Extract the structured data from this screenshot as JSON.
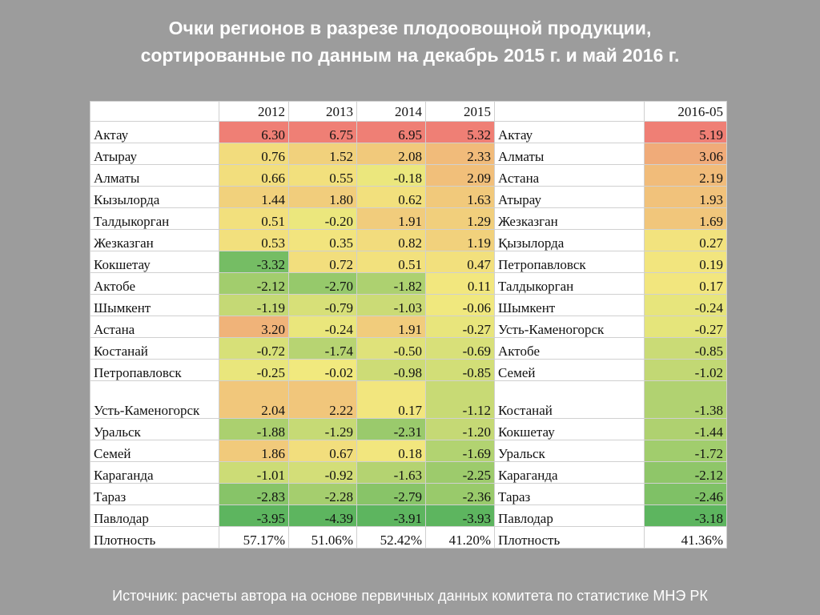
{
  "title": {
    "line1": "Очки регионов в разрезе плодоовощной продукции,",
    "line2": "сортированные по данным на декабрь 2015 г. и май 2016 г."
  },
  "source": "Источник: расчеты автора на основе первичных данных комитета по статистике МНЭ РК",
  "table": {
    "headers": [
      "",
      "2012",
      "2013",
      "2014",
      "2015",
      "",
      "2016-05"
    ],
    "rows": [
      {
        "region": "Актау",
        "v": [
          "6.30",
          "6.75",
          "6.95",
          "5.32"
        ],
        "region2": "Актау",
        "v2": "5.19"
      },
      {
        "region": "Атырау",
        "v": [
          "0.76",
          "1.52",
          "2.08",
          "2.33"
        ],
        "region2": "Алматы",
        "v2": "3.06"
      },
      {
        "region": "Алматы",
        "v": [
          "0.66",
          "0.55",
          "-0.18",
          "2.09"
        ],
        "region2": "Астана",
        "v2": "2.19"
      },
      {
        "region": "Кызылорда",
        "v": [
          "1.44",
          "1.80",
          "0.62",
          "1.63"
        ],
        "region2": "Атырау",
        "v2": "1.93"
      },
      {
        "region": "Талдыкорган",
        "v": [
          "0.51",
          "-0.20",
          "1.91",
          "1.29"
        ],
        "region2": "Жезказган",
        "v2": "1.69"
      },
      {
        "region": "Жезказган",
        "v": [
          "0.53",
          "0.35",
          "0.82",
          "1.19"
        ],
        "region2": "Қызылорда",
        "v2": "0.27"
      },
      {
        "region": "Кокшетау",
        "v": [
          "-3.32",
          "0.72",
          "0.51",
          "0.47"
        ],
        "region2": "Петропавловск",
        "v2": "0.19"
      },
      {
        "region": "Актобе",
        "v": [
          "-2.12",
          "-2.70",
          "-1.82",
          "0.11"
        ],
        "region2": "Талдыкорган",
        "v2": "0.17"
      },
      {
        "region": "Шымкент",
        "v": [
          "-1.19",
          "-0.79",
          "-1.03",
          "-0.06"
        ],
        "region2": "Шымкент",
        "v2": "-0.24"
      },
      {
        "region": "Астана",
        "v": [
          "3.20",
          "-0.24",
          "1.91",
          "-0.27"
        ],
        "region2": "Усть-Каменогорск",
        "v2": "-0.27"
      },
      {
        "region": "Костанай",
        "v": [
          "-0.72",
          "-1.74",
          "-0.50",
          "-0.69"
        ],
        "region2": "Актобе",
        "v2": "-0.85"
      },
      {
        "region": "Петропавловск",
        "v": [
          "-0.25",
          "-0.02",
          "-0.98",
          "-0.85"
        ],
        "region2": "Семей",
        "v2": "-1.02"
      },
      {
        "region": "Усть-Каменогорск",
        "v": [
          "2.04",
          "2.22",
          "0.17",
          "-1.12"
        ],
        "region2": "Костанай",
        "v2": "-1.38"
      },
      {
        "region": "Уральск",
        "v": [
          "-1.88",
          "-1.29",
          "-2.31",
          "-1.20"
        ],
        "region2": "Кокшетау",
        "v2": "-1.44"
      },
      {
        "region": "Семей",
        "v": [
          "1.86",
          "0.67",
          "0.18",
          "-1.69"
        ],
        "region2": "Уральск",
        "v2": "-1.72"
      },
      {
        "region": "Караганда",
        "v": [
          "-1.01",
          "-0.92",
          "-1.63",
          "-2.25"
        ],
        "region2": "Караганда",
        "v2": "-2.12"
      },
      {
        "region": "Тараз",
        "v": [
          "-2.83",
          "-2.28",
          "-2.79",
          "-2.36"
        ],
        "region2": "Тараз",
        "v2": "-2.46"
      },
      {
        "region": "Павлодар",
        "v": [
          "-3.95",
          "-4.39",
          "-3.91",
          "-3.93"
        ],
        "region2": "Павлодар",
        "v2": "-3.18"
      }
    ],
    "footer": {
      "label": "Плотность",
      "v": [
        "57.17%",
        "51.06%",
        "52.42%",
        "41.20%"
      ],
      "label2": "Плотность",
      "v2": "41.36%"
    }
  },
  "colors": {
    "scale_low": "#5db55f",
    "scale_mid": "#f2e97e",
    "scale_high": "#ef7f75",
    "background": "#9c9c9c"
  },
  "chart_data": {
    "type": "table",
    "columns": [
      "2012",
      "2013",
      "2014",
      "2015",
      "2016-05"
    ],
    "rows_sorted_2015": [
      "Актау",
      "Атырау",
      "Алматы",
      "Кызылорда",
      "Талдыкорган",
      "Жезказган",
      "Кокшетау",
      "Актобе",
      "Шымкент",
      "Астана",
      "Костанай",
      "Петропавловск",
      "Усть-Каменогорск",
      "Уральск",
      "Семей",
      "Караганда",
      "Тараз",
      "Павлодар"
    ],
    "series": [
      {
        "name": "2012",
        "values": [
          6.3,
          0.76,
          0.66,
          1.44,
          0.51,
          0.53,
          -3.32,
          -2.12,
          -1.19,
          3.2,
          -0.72,
          -0.25,
          2.04,
          -1.88,
          1.86,
          -1.01,
          -2.83,
          -3.95
        ]
      },
      {
        "name": "2013",
        "values": [
          6.75,
          1.52,
          0.55,
          1.8,
          -0.2,
          0.35,
          0.72,
          -2.7,
          -0.79,
          -0.24,
          -1.74,
          -0.02,
          2.22,
          -1.29,
          0.67,
          -0.92,
          -2.28,
          -4.39
        ]
      },
      {
        "name": "2014",
        "values": [
          6.95,
          2.08,
          -0.18,
          0.62,
          1.91,
          0.82,
          0.51,
          -1.82,
          -1.03,
          1.91,
          -0.5,
          -0.98,
          0.17,
          -2.31,
          0.18,
          -1.63,
          -2.79,
          -3.91
        ]
      },
      {
        "name": "2015",
        "values": [
          5.32,
          2.33,
          2.09,
          1.63,
          1.29,
          1.19,
          0.47,
          0.11,
          -0.06,
          -0.27,
          -0.69,
          -0.85,
          -1.12,
          -1.2,
          -1.69,
          -2.25,
          -2.36,
          -3.93
        ]
      }
    ],
    "rows_sorted_2016_05": [
      "Актау",
      "Алматы",
      "Астана",
      "Атырау",
      "Жезказган",
      "Қызылорда",
      "Петропавловск",
      "Талдыкорган",
      "Шымкент",
      "Усть-Каменогорск",
      "Актобе",
      "Семей",
      "Костанай",
      "Кокшетау",
      "Уральск",
      "Караганда",
      "Тараз",
      "Павлодар"
    ],
    "values_2016_05": [
      5.19,
      3.06,
      2.19,
      1.93,
      1.69,
      0.27,
      0.19,
      0.17,
      -0.24,
      -0.27,
      -0.85,
      -1.02,
      -1.38,
      -1.44,
      -1.72,
      -2.12,
      -2.46,
      -3.18
    ],
    "density": {
      "2012": "57.17%",
      "2013": "51.06%",
      "2014": "52.42%",
      "2015": "41.20%",
      "2016-05": "41.36%"
    }
  }
}
